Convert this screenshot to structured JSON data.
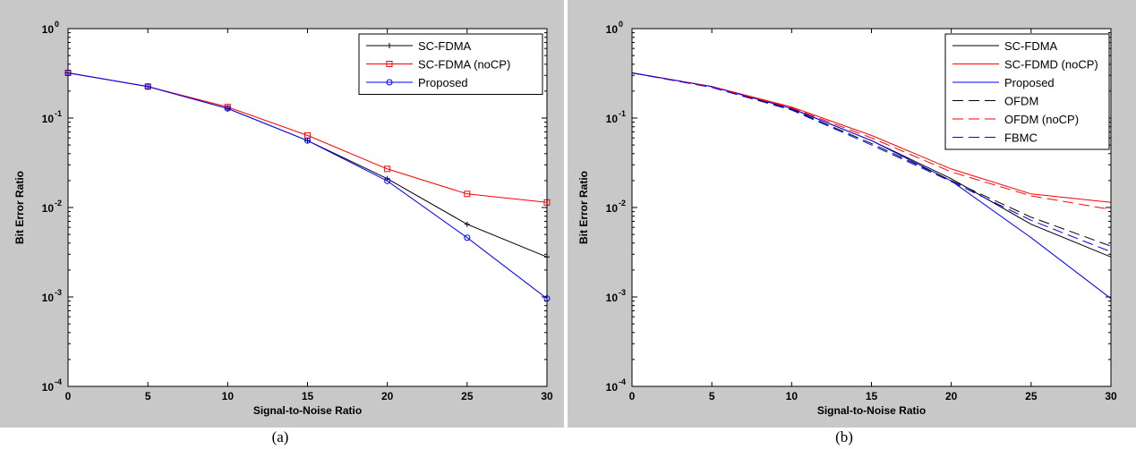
{
  "chart_data": [
    {
      "type": "line",
      "caption": "(a)",
      "xlabel": "Signal-to-Noise Ratio",
      "ylabel": "Bit Error Ratio",
      "xlim": [
        0,
        30
      ],
      "ylim": [
        0.0001,
        1
      ],
      "yscale": "log",
      "xticks": [
        "0",
        "5",
        "10",
        "15",
        "20",
        "25",
        "30"
      ],
      "yticks": [
        {
          "value": 1,
          "base": "10",
          "exp": "0"
        },
        {
          "value": 0.1,
          "base": "10",
          "exp": "-1"
        },
        {
          "value": 0.01,
          "base": "10",
          "exp": "-2"
        },
        {
          "value": 0.001,
          "base": "10",
          "exp": "-3"
        },
        {
          "value": 0.0001,
          "base": "10",
          "exp": "-4"
        }
      ],
      "grid": false,
      "legend_position": "top-right",
      "series": [
        {
          "name": "SC-FDMA",
          "color": "#000000",
          "dash": "solid",
          "marker": "plus",
          "x": [
            0,
            5,
            10,
            15,
            20,
            25,
            30
          ],
          "y": [
            0.32,
            0.225,
            0.128,
            0.056,
            0.021,
            0.0065,
            0.0028
          ]
        },
        {
          "name": "SC-FDMA (noCP)",
          "color": "#ff0000",
          "dash": "solid",
          "marker": "square",
          "x": [
            0,
            5,
            10,
            15,
            20,
            25,
            30
          ],
          "y": [
            0.32,
            0.225,
            0.133,
            0.064,
            0.027,
            0.0142,
            0.0114
          ]
        },
        {
          "name": "Proposed",
          "color": "#0000ff",
          "dash": "solid",
          "marker": "circle",
          "x": [
            0,
            5,
            10,
            15,
            20,
            25,
            30
          ],
          "y": [
            0.32,
            0.225,
            0.128,
            0.056,
            0.0198,
            0.0046,
            0.00096
          ]
        }
      ]
    },
    {
      "type": "line",
      "caption": "(b)",
      "xlabel": "Signal-to-Noise Ratio",
      "ylabel": "Bit Error Ratio",
      "xlim": [
        0,
        30
      ],
      "ylim": [
        0.0001,
        1
      ],
      "yscale": "log",
      "xticks": [
        "0",
        "5",
        "10",
        "15",
        "20",
        "25",
        "30"
      ],
      "yticks": [
        {
          "value": 1,
          "base": "10",
          "exp": "0"
        },
        {
          "value": 0.1,
          "base": "10",
          "exp": "-1"
        },
        {
          "value": 0.01,
          "base": "10",
          "exp": "-2"
        },
        {
          "value": 0.001,
          "base": "10",
          "exp": "-3"
        },
        {
          "value": 0.0001,
          "base": "10",
          "exp": "-4"
        }
      ],
      "grid": false,
      "legend_position": "top-right",
      "series": [
        {
          "name": "SC-FDMA",
          "color": "#000000",
          "dash": "solid",
          "marker": "none",
          "x": [
            0,
            5,
            10,
            15,
            20,
            25,
            30
          ],
          "y": [
            0.32,
            0.225,
            0.128,
            0.056,
            0.021,
            0.0065,
            0.0028
          ]
        },
        {
          "name": "SC-FDMD (noCP)",
          "color": "#ff0000",
          "dash": "solid",
          "marker": "none",
          "x": [
            0,
            5,
            10,
            15,
            20,
            25,
            30
          ],
          "y": [
            0.32,
            0.225,
            0.133,
            0.064,
            0.027,
            0.0142,
            0.0114
          ]
        },
        {
          "name": "Proposed",
          "color": "#0000ff",
          "dash": "solid",
          "marker": "none",
          "x": [
            0,
            5,
            10,
            15,
            20,
            25,
            30
          ],
          "y": [
            0.32,
            0.225,
            0.128,
            0.056,
            0.0198,
            0.0046,
            0.00096
          ]
        },
        {
          "name": "OFDM",
          "color": "#000000",
          "dash": "dashed",
          "marker": "none",
          "x": [
            0,
            5,
            10,
            15,
            20,
            25,
            30
          ],
          "y": [
            0.32,
            0.222,
            0.125,
            0.052,
            0.02,
            0.0078,
            0.0037
          ]
        },
        {
          "name": "OFDM (noCP)",
          "color": "#ff0000",
          "dash": "dashed",
          "marker": "none",
          "x": [
            0,
            5,
            10,
            15,
            20,
            25,
            30
          ],
          "y": [
            0.32,
            0.224,
            0.13,
            0.06,
            0.025,
            0.0135,
            0.0095
          ]
        },
        {
          "name": "FBMC",
          "color": "#0000ff",
          "dash": "dashed",
          "marker": "none",
          "x": [
            0,
            5,
            10,
            15,
            20,
            25,
            30
          ],
          "y": [
            0.32,
            0.22,
            0.123,
            0.05,
            0.0195,
            0.0072,
            0.0032
          ]
        }
      ]
    }
  ]
}
